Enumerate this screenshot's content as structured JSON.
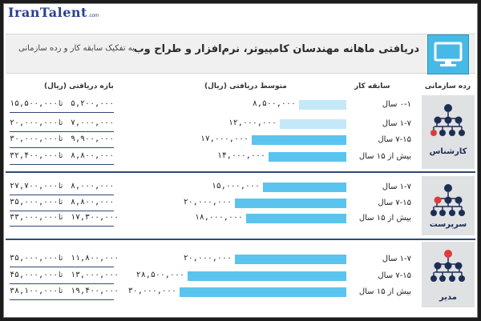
{
  "logo": {
    "text": "IranTalent",
    "suffix": ".com"
  },
  "header": {
    "title": "دریافتی ماهانه مهندسان کامپیوتر، نرم‌افزار و طراح وب",
    "subtitle": "به تفکیک سابقه کار و رده سازمانی"
  },
  "columns": {
    "level": "رده سازمانی",
    "experience": "سابقه کار",
    "average": "متوسط دریافتی (ریال)",
    "range": "بازه دریافتی (ریال)"
  },
  "to_label": "تا",
  "colors": {
    "bar": "#5ac4ee",
    "bar_light": "#c4e8f8",
    "dark_node": "#1d2d55",
    "red_node": "#e03a3a",
    "panel": "#dfe1e3",
    "rule": "#2e4a7a"
  },
  "chart_data": {
    "type": "bar",
    "orientation": "horizontal",
    "title": "دریافتی ماهانه مهندسان کامپیوتر، نرم‌افزار و طراح وب",
    "subtitle": "به تفکیک سابقه کار و رده سازمانی",
    "groups": [
      {
        "level": "کارشناس",
        "rows": [
          {
            "experience": "۰-۱ سال",
            "average": 8500000,
            "average_label": "۸,۵۰۰,۰۰۰",
            "min_label": "۵,۲۰۰,۰۰۰",
            "max_label": "۱۵,۵۰۰,۰۰۰"
          },
          {
            "experience": "۱-۷ سال",
            "average": 12000000,
            "average_label": "۱۲,۰۰۰,۰۰۰",
            "min_label": "۷,۰۰۰,۰۰۰",
            "max_label": "۲۰,۰۰۰,۰۰۰"
          },
          {
            "experience": "۷-۱۵ سال",
            "average": 17000000,
            "average_label": "۱۷,۰۰۰,۰۰۰",
            "min_label": "۹,۹۰۰,۰۰۰",
            "max_label": "۳۰,۰۰۰,۰۰۰"
          },
          {
            "experience": "بیش از ۱۵ سال",
            "average": 14000000,
            "average_label": "۱۴,۰۰۰,۰۰۰",
            "min_label": "۸,۸۰۰,۰۰۰",
            "max_label": "۳۲,۴۰۰,۰۰۰"
          }
        ]
      },
      {
        "level": "سرپرست",
        "rows": [
          {
            "experience": "۱-۷ سال",
            "average": 15000000,
            "average_label": "۱۵,۰۰۰,۰۰۰",
            "min_label": "۸,۰۰۰,۰۰۰",
            "max_label": "۲۷,۷۰۰,۰۰۰"
          },
          {
            "experience": "۷-۱۵ سال",
            "average": 20000000,
            "average_label": "۲۰,۰۰۰,۰۰۰",
            "min_label": "۸,۸۰۰,۰۰۰",
            "max_label": "۳۵,۰۰۰,۰۰۰"
          },
          {
            "experience": "بیش از ۱۵ سال",
            "average": 18000000,
            "average_label": "۱۸,۰۰۰,۰۰۰",
            "min_label": "۱۷,۳۰۰,۰۰۰",
            "max_label": "۳۳,۰۰۰,۰۰۰"
          }
        ]
      },
      {
        "level": "مدیر",
        "rows": [
          {
            "experience": "۱-۷ سال",
            "average": 20000000,
            "average_label": "۲۰,۰۰۰,۰۰۰",
            "min_label": "۱۱,۸۰۰,۰۰۰",
            "max_label": "۳۵,۰۰۰,۰۰۰"
          },
          {
            "experience": "۷-۱۵ سال",
            "average": 28500000,
            "average_label": "۲۸,۵۰۰,۰۰۰",
            "min_label": "۱۳,۰۰۰,۰۰۰",
            "max_label": "۴۵,۰۰۰,۰۰۰"
          },
          {
            "experience": "بیش از ۱۵ سال",
            "average": 30000000,
            "average_label": "۳۰,۰۰۰,۰۰۰",
            "min_label": "۱۹,۴۰۰,۰۰۰",
            "max_label": "۳۸,۱۰۰,۰۰۰"
          }
        ]
      }
    ]
  }
}
